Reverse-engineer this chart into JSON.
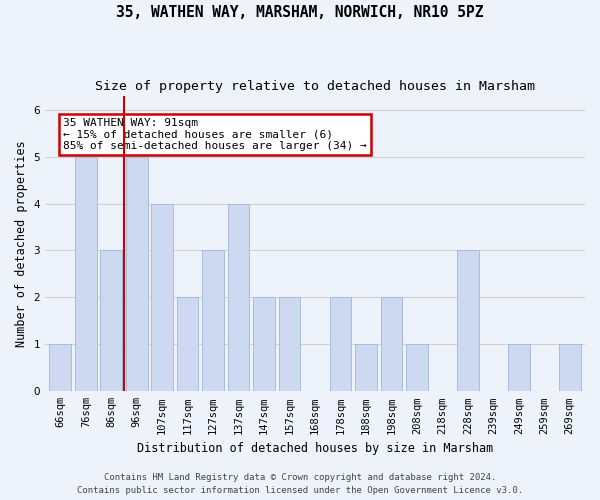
{
  "title_line1": "35, WATHEN WAY, MARSHAM, NORWICH, NR10 5PZ",
  "title_line2": "Size of property relative to detached houses in Marsham",
  "xlabel": "Distribution of detached houses by size in Marsham",
  "ylabel": "Number of detached properties",
  "categories": [
    "66sqm",
    "76sqm",
    "86sqm",
    "96sqm",
    "107sqm",
    "117sqm",
    "127sqm",
    "137sqm",
    "147sqm",
    "157sqm",
    "168sqm",
    "178sqm",
    "188sqm",
    "198sqm",
    "208sqm",
    "218sqm",
    "228sqm",
    "239sqm",
    "249sqm",
    "259sqm",
    "269sqm"
  ],
  "values": [
    1,
    5,
    3,
    5,
    4,
    2,
    3,
    4,
    2,
    2,
    0,
    2,
    1,
    2,
    1,
    0,
    3,
    0,
    1,
    0,
    1
  ],
  "bar_color": "#ccd9f0",
  "bar_edge_color": "#aabbd8",
  "red_line_x": 2.5,
  "annotation_text": "35 WATHEN WAY: 91sqm\n← 15% of detached houses are smaller (6)\n85% of semi-detached houses are larger (34) →",
  "annotation_box_color": "#ffffff",
  "annotation_box_edge_color": "#cc0000",
  "red_line_color": "#cc0000",
  "ylim": [
    0,
    6.3
  ],
  "yticks": [
    0,
    1,
    2,
    3,
    4,
    5,
    6
  ],
  "grid_color": "#d0d0d0",
  "background_color": "#eef2fb",
  "footer_line1": "Contains HM Land Registry data © Crown copyright and database right 2024.",
  "footer_line2": "Contains public sector information licensed under the Open Government Licence v3.0.",
  "title_fontsize": 10.5,
  "subtitle_fontsize": 9.5,
  "axis_label_fontsize": 8.5,
  "tick_fontsize": 7.5,
  "footer_fontsize": 6.5,
  "annot_fontsize": 8
}
